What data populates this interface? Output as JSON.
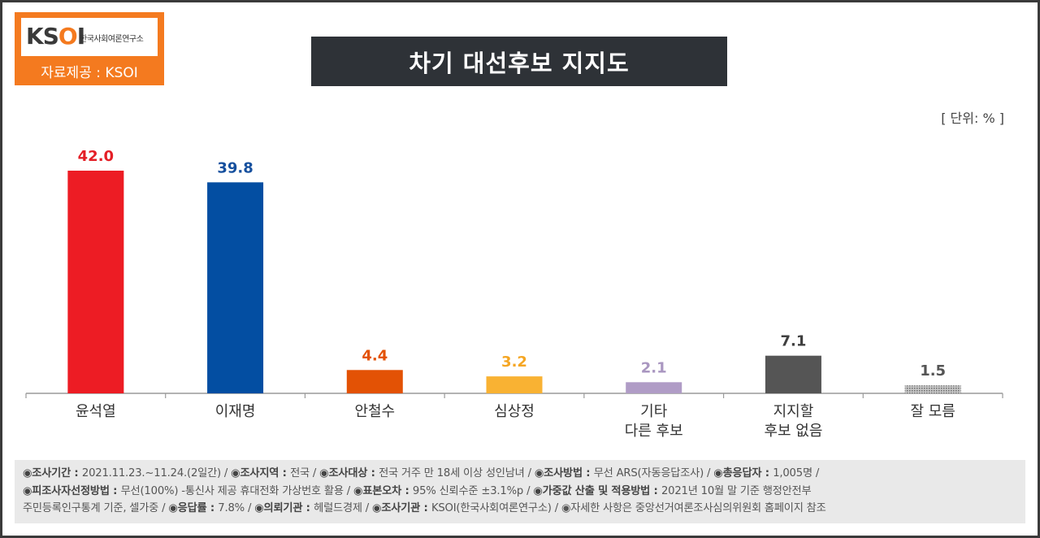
{
  "logo": {
    "mark": "KSOI",
    "org_name": "한국사회여론연구소",
    "caption": "자료제공 : KSOI"
  },
  "title": "차기 대선후보 지지도",
  "unit": "[ 단위: % ]",
  "chart_data": {
    "type": "bar",
    "title": "차기 대선후보 지지도",
    "unit": "%",
    "categories": [
      "윤석열",
      "이재명",
      "안철수",
      "심상정",
      "기타\n다른 후보",
      "지지할\n후보 없음",
      "잘 모름"
    ],
    "values": [
      42.0,
      39.8,
      4.4,
      3.2,
      2.1,
      7.1,
      1.5
    ],
    "value_labels": [
      "42.0",
      "39.8",
      "4.4",
      "3.2",
      "2.1",
      "7.1",
      "1.5"
    ],
    "colors": [
      "#ed1c24",
      "#034ea2",
      "#e35205",
      "#f9b233",
      "#b09cc6",
      "#555555",
      "#9a9a9a"
    ],
    "label_colors": [
      "#e41e26",
      "#16509e",
      "#e35205",
      "#f5a623",
      "#a996c0",
      "#3f3f3f",
      "#555555"
    ],
    "ylim": [
      0,
      42
    ],
    "grid": false
  },
  "notes": {
    "line1": [
      {
        "label": "◉조사기간 : ",
        "text": "2021.11.23.~11.24.(2일간)  / "
      },
      {
        "label": "◉조사지역 : ",
        "text": "전국 / "
      },
      {
        "label": "◉조사대상 : ",
        "text": "전국 거주 만 18세 이상 성인남녀 / "
      },
      {
        "label": "◉조사방법 : ",
        "text": "무선 ARS(자동응답조사) / "
      },
      {
        "label": "◉총응답자 : ",
        "text": "1,005명 /"
      }
    ],
    "line2": [
      {
        "label": "◉피조사자선정방법 : ",
        "text": "무선(100%) -통신사 제공 휴대전화 가상번호 활용 / "
      },
      {
        "label": "◉표본오차 : ",
        "text": "95% 신뢰수준 ±3.1%p / "
      },
      {
        "label": "◉가중값 산출 및 적용방법 : ",
        "text": "2021년 10월 말 기준 행정안전부"
      }
    ],
    "line3": [
      {
        "label": "",
        "text": "주민등록인구통계 기준, 셀가중 / "
      },
      {
        "label": "◉응답률 : ",
        "text": "7.8% / "
      },
      {
        "label": "◉의뢰기관 : ",
        "text": "헤럴드경제 / "
      },
      {
        "label": "◉조사기관 : ",
        "text": "KSOI(한국사회여론연구소) / "
      },
      {
        "label": "",
        "text": "◉자세한 사항은 중앙선거여론조사심의위원회 홈페이지 참조"
      }
    ]
  }
}
